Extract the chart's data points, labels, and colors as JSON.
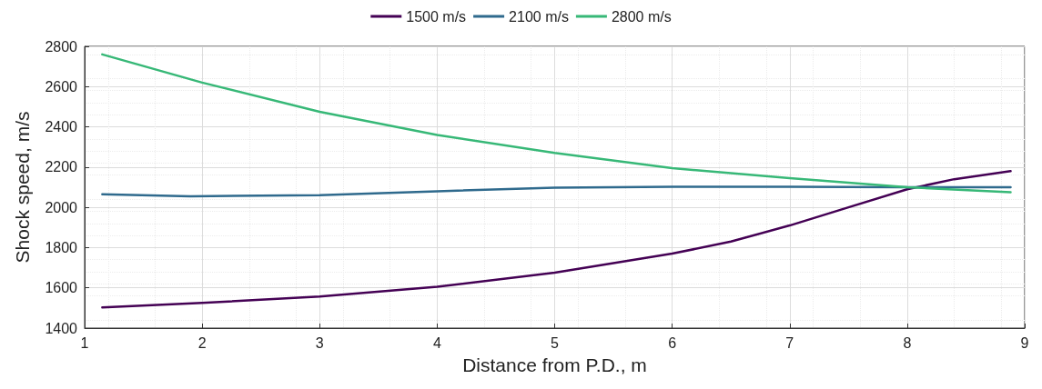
{
  "chart_data": {
    "type": "line",
    "xlabel": "Distance from P.D., m",
    "ylabel": "Shock speed, m/s",
    "xlim": [
      1,
      9
    ],
    "xticks": [
      1,
      2,
      3,
      4,
      5,
      6,
      7,
      8,
      9
    ],
    "ylim": [
      1400,
      2800
    ],
    "yticks": [
      1400,
      1600,
      1800,
      2000,
      2200,
      2400,
      2600,
      2800
    ],
    "grid": true,
    "legend": "top",
    "marker": "none",
    "line_style": "solid",
    "series": [
      {
        "name": "1500 m/s",
        "color": "#440154",
        "x": [
          1.15,
          2,
          3,
          4,
          5,
          6,
          6.5,
          7,
          7.5,
          8,
          8.4,
          8.88
        ],
        "values": [
          1503,
          1525,
          1557,
          1605,
          1675,
          1770,
          1830,
          1910,
          2000,
          2090,
          2140,
          2180
        ]
      },
      {
        "name": "2100 m/s",
        "color": "#2f6a8d",
        "x": [
          1.15,
          1.9,
          3,
          4,
          5,
          6,
          7,
          8,
          8.88
        ],
        "values": [
          2065,
          2055,
          2060,
          2080,
          2098,
          2102,
          2102,
          2100,
          2100
        ]
      },
      {
        "name": "2800 m/s",
        "color": "#37b877",
        "x": [
          1.15,
          2,
          3,
          4,
          5,
          6,
          7,
          8,
          8.88
        ],
        "values": [
          2760,
          2620,
          2475,
          2360,
          2270,
          2195,
          2145,
          2100,
          2075
        ]
      }
    ]
  }
}
